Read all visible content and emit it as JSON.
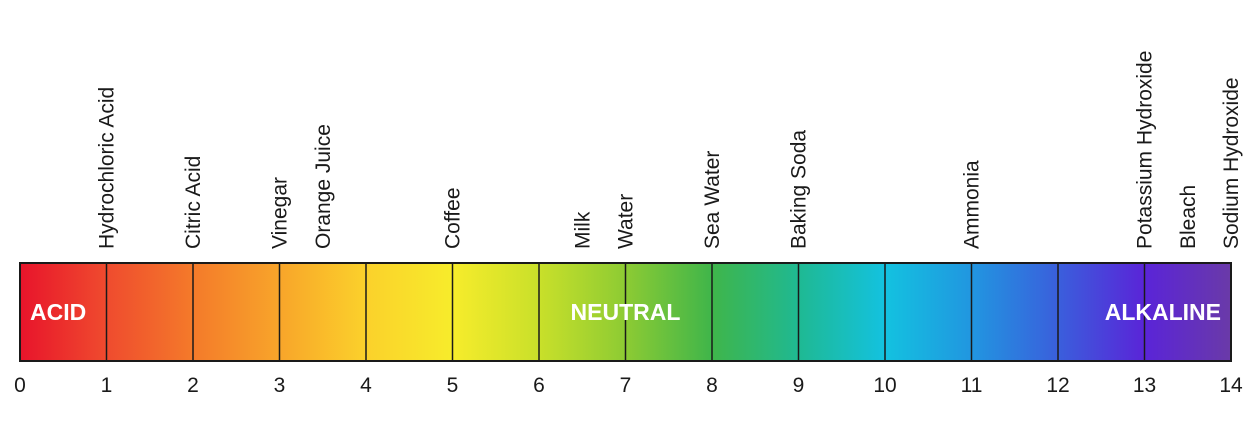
{
  "chart_data": {
    "type": "scale",
    "axis": {
      "min": 0,
      "max": 14,
      "ticks": [
        0,
        1,
        2,
        3,
        4,
        5,
        6,
        7,
        8,
        9,
        10,
        11,
        12,
        13,
        14
      ]
    },
    "zones": [
      {
        "label": "ACID",
        "anchor": 0.5
      },
      {
        "label": "NEUTRAL",
        "anchor": 7
      },
      {
        "label": "ALKALINE",
        "anchor": 13.5
      }
    ],
    "substances": [
      {
        "name": "Hydrochloric Acid",
        "value": 1
      },
      {
        "name": "Citric Acid",
        "value": 2
      },
      {
        "name": "Vinegar",
        "value": 3
      },
      {
        "name": "Orange Juice",
        "value": 3.5
      },
      {
        "name": "Coffee",
        "value": 5
      },
      {
        "name": "Milk",
        "value": 6.5
      },
      {
        "name": "Water",
        "value": 7
      },
      {
        "name": "Sea Water",
        "value": 8
      },
      {
        "name": "Baking Soda",
        "value": 9
      },
      {
        "name": "Ammonia",
        "value": 11
      },
      {
        "name": "Potassium Hydroxide",
        "value": 13
      },
      {
        "name": "Bleach",
        "value": 13.5
      },
      {
        "name": "Sodium Hydroxide",
        "value": 14
      }
    ],
    "colors": [
      "#e8142b",
      "#ef4b2e",
      "#f47a2a",
      "#f8a52a",
      "#fbd12b",
      "#f7ec2b",
      "#c9e02a",
      "#8dcb33",
      "#3fb54a",
      "#1fb992",
      "#13c2e0",
      "#2196e0",
      "#3a5fdc",
      "#5a24d8",
      "#6a3aa8"
    ]
  }
}
